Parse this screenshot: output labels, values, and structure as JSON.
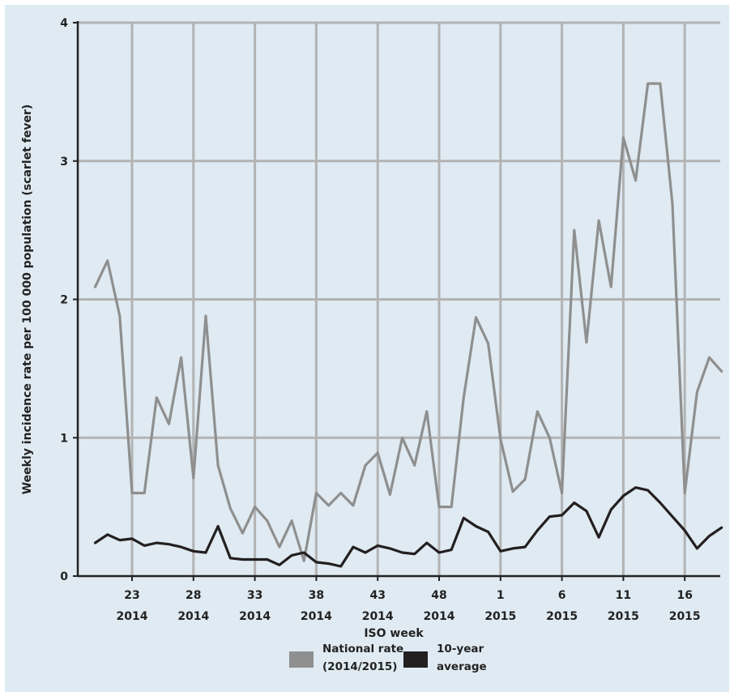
{
  "chart_data": {
    "type": "line",
    "xlabel": "ISO week",
    "ylabel": "Weekly incidence rate per 100 000 population (scarlet fever)",
    "ylim": [
      0,
      4
    ],
    "yticks": [
      "0",
      "1",
      "2",
      "3",
      "4"
    ],
    "grid": true,
    "legend_placement": "bottom-center",
    "x_start_week": "20 2014",
    "x_tick_labels": [
      {
        "week": "23",
        "year": "2014"
      },
      {
        "week": "28",
        "year": "2014"
      },
      {
        "week": "33",
        "year": "2014"
      },
      {
        "week": "38",
        "year": "2014"
      },
      {
        "week": "43",
        "year": "2014"
      },
      {
        "week": "48",
        "year": "2014"
      },
      {
        "week": "1",
        "year": "2015"
      },
      {
        "week": "6",
        "year": "2015"
      },
      {
        "week": "11",
        "year": "2015"
      },
      {
        "week": "16",
        "year": "2015"
      }
    ],
    "series": [
      {
        "name_lines": [
          "National rate",
          "(2014/2015)"
        ],
        "color": "#8f8f8f",
        "values": [
          2.09,
          2.28,
          1.88,
          0.6,
          0.6,
          1.29,
          1.1,
          1.58,
          0.71,
          1.88,
          0.8,
          0.49,
          0.31,
          0.5,
          0.4,
          0.21,
          0.4,
          0.11,
          0.6,
          0.51,
          0.6,
          0.51,
          0.8,
          0.89,
          0.59,
          1.0,
          0.8,
          1.19,
          0.5,
          0.5,
          1.29,
          1.87,
          1.68,
          0.99,
          0.61,
          0.7,
          1.19,
          1.0,
          0.6,
          2.5,
          1.69,
          2.57,
          2.09,
          3.17,
          2.86,
          3.56,
          3.56,
          2.69,
          0.6,
          1.33,
          1.58,
          1.48
        ]
      },
      {
        "name_lines": [
          "10-year",
          "average"
        ],
        "color": "#231f20",
        "values": [
          0.24,
          0.3,
          0.26,
          0.27,
          0.22,
          0.24,
          0.23,
          0.21,
          0.18,
          0.17,
          0.36,
          0.13,
          0.12,
          0.12,
          0.12,
          0.08,
          0.15,
          0.17,
          0.1,
          0.09,
          0.07,
          0.21,
          0.17,
          0.22,
          0.2,
          0.17,
          0.16,
          0.24,
          0.17,
          0.19,
          0.42,
          0.36,
          0.32,
          0.18,
          0.2,
          0.21,
          0.33,
          0.43,
          0.44,
          0.53,
          0.47,
          0.28,
          0.48,
          0.58,
          0.64,
          0.62,
          0.53,
          0.43,
          0.33,
          0.2,
          0.29,
          0.35
        ]
      }
    ]
  }
}
